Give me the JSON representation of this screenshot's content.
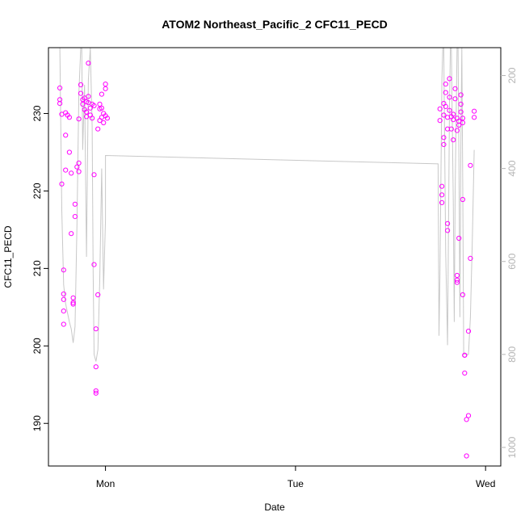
{
  "chart_data": {
    "type": "scatter",
    "title": "ATOM2 Northeast_Pacific_2 CFC11_PECD",
    "xlabel": "Date",
    "ylabel": "CFC11_PECD",
    "y_ticks": [
      190,
      200,
      210,
      220,
      230
    ],
    "ylim": [
      184.5,
      238.5
    ],
    "x_ticks": [
      {
        "label": "Mon",
        "day": 1.0
      },
      {
        "label": "Tue",
        "day": 2.0
      },
      {
        "label": "Wed",
        "day": 3.0
      }
    ],
    "xlim": [
      0.7,
      3.08
    ],
    "right_axis": {
      "ticks": [
        200,
        400,
        600,
        800,
        1000
      ],
      "ylim": [
        1040,
        140
      ],
      "inverted": true
    },
    "colors": {
      "points": "#ff00ff",
      "depth_line": "#c8c8c8",
      "right_axis": "#b4b4b4",
      "axis": "#000000"
    },
    "series": [
      {
        "role": "primary",
        "points": [
          {
            "day": 0.76,
            "value": 233.3
          },
          {
            "day": 0.76,
            "value": 231.8
          },
          {
            "day": 0.76,
            "value": 231.3
          },
          {
            "day": 0.77,
            "value": 229.9
          },
          {
            "day": 0.77,
            "value": 220.9
          },
          {
            "day": 0.78,
            "value": 209.8
          },
          {
            "day": 0.78,
            "value": 206.0
          },
          {
            "day": 0.78,
            "value": 206.7
          },
          {
            "day": 0.78,
            "value": 204.5
          },
          {
            "day": 0.78,
            "value": 202.8
          },
          {
            "day": 0.79,
            "value": 227.2
          },
          {
            "day": 0.79,
            "value": 222.7
          },
          {
            "day": 0.79,
            "value": 230.1
          },
          {
            "day": 0.8,
            "value": 229.8
          },
          {
            "day": 0.81,
            "value": 229.5
          },
          {
            "day": 0.81,
            "value": 225.0
          },
          {
            "day": 0.82,
            "value": 222.3
          },
          {
            "day": 0.82,
            "value": 214.5
          },
          {
            "day": 0.83,
            "value": 206.2
          },
          {
            "day": 0.83,
            "value": 205.6
          },
          {
            "day": 0.83,
            "value": 205.4
          },
          {
            "day": 0.84,
            "value": 216.7
          },
          {
            "day": 0.84,
            "value": 218.3
          },
          {
            "day": 0.85,
            "value": 223.1
          },
          {
            "day": 0.86,
            "value": 223.6
          },
          {
            "day": 0.86,
            "value": 222.5
          },
          {
            "day": 0.86,
            "value": 229.3
          },
          {
            "day": 0.87,
            "value": 233.7
          },
          {
            "day": 0.87,
            "value": 232.6
          },
          {
            "day": 0.88,
            "value": 231.8
          },
          {
            "day": 0.88,
            "value": 231.2
          },
          {
            "day": 0.89,
            "value": 230.5
          },
          {
            "day": 0.89,
            "value": 232.0
          },
          {
            "day": 0.9,
            "value": 231.5
          },
          {
            "day": 0.9,
            "value": 230.2
          },
          {
            "day": 0.9,
            "value": 229.6
          },
          {
            "day": 0.91,
            "value": 236.5
          },
          {
            "day": 0.91,
            "value": 232.2
          },
          {
            "day": 0.91,
            "value": 231.4
          },
          {
            "day": 0.92,
            "value": 230.7
          },
          {
            "day": 0.92,
            "value": 229.8
          },
          {
            "day": 0.93,
            "value": 229.4
          },
          {
            "day": 0.93,
            "value": 231.2
          },
          {
            "day": 0.94,
            "value": 231.0
          },
          {
            "day": 0.94,
            "value": 222.1
          },
          {
            "day": 0.94,
            "value": 210.5
          },
          {
            "day": 0.95,
            "value": 202.2
          },
          {
            "day": 0.95,
            "value": 197.3
          },
          {
            "day": 0.95,
            "value": 194.2
          },
          {
            "day": 0.95,
            "value": 193.9
          },
          {
            "day": 0.96,
            "value": 206.6
          },
          {
            "day": 0.96,
            "value": 228.0
          },
          {
            "day": 0.97,
            "value": 230.6
          },
          {
            "day": 0.97,
            "value": 231.2
          },
          {
            "day": 0.97,
            "value": 229.1
          },
          {
            "day": 0.98,
            "value": 232.5
          },
          {
            "day": 0.98,
            "value": 230.7
          },
          {
            "day": 0.98,
            "value": 229.5
          },
          {
            "day": 0.99,
            "value": 230.0
          },
          {
            "day": 0.99,
            "value": 228.8
          },
          {
            "day": 1.0,
            "value": 229.7
          },
          {
            "day": 1.0,
            "value": 233.8
          },
          {
            "day": 1.0,
            "value": 233.2
          },
          {
            "day": 1.01,
            "value": 229.4
          },
          {
            "day": 2.76,
            "value": 230.6
          },
          {
            "day": 2.76,
            "value": 229.1
          },
          {
            "day": 2.77,
            "value": 220.6
          },
          {
            "day": 2.77,
            "value": 219.5
          },
          {
            "day": 2.77,
            "value": 218.5
          },
          {
            "day": 2.78,
            "value": 226.0
          },
          {
            "day": 2.78,
            "value": 226.9
          },
          {
            "day": 2.78,
            "value": 229.8
          },
          {
            "day": 2.78,
            "value": 231.3
          },
          {
            "day": 2.79,
            "value": 233.8
          },
          {
            "day": 2.79,
            "value": 232.7
          },
          {
            "day": 2.79,
            "value": 230.9
          },
          {
            "day": 2.8,
            "value": 229.5
          },
          {
            "day": 2.8,
            "value": 228.0
          },
          {
            "day": 2.8,
            "value": 215.8
          },
          {
            "day": 2.8,
            "value": 214.9
          },
          {
            "day": 2.81,
            "value": 232.1
          },
          {
            "day": 2.81,
            "value": 234.5
          },
          {
            "day": 2.81,
            "value": 230.4
          },
          {
            "day": 2.82,
            "value": 229.6
          },
          {
            "day": 2.82,
            "value": 228.0
          },
          {
            "day": 2.83,
            "value": 226.6
          },
          {
            "day": 2.83,
            "value": 229.2
          },
          {
            "day": 2.83,
            "value": 229.9
          },
          {
            "day": 2.84,
            "value": 233.2
          },
          {
            "day": 2.84,
            "value": 231.9
          },
          {
            "day": 2.85,
            "value": 229.4
          },
          {
            "day": 2.85,
            "value": 227.8
          },
          {
            "day": 2.85,
            "value": 209.1
          },
          {
            "day": 2.85,
            "value": 208.5
          },
          {
            "day": 2.85,
            "value": 208.2
          },
          {
            "day": 2.86,
            "value": 213.9
          },
          {
            "day": 2.86,
            "value": 229.0
          },
          {
            "day": 2.86,
            "value": 228.5
          },
          {
            "day": 2.87,
            "value": 232.4
          },
          {
            "day": 2.87,
            "value": 231.2
          },
          {
            "day": 2.87,
            "value": 230.2
          },
          {
            "day": 2.88,
            "value": 229.4
          },
          {
            "day": 2.88,
            "value": 228.8
          },
          {
            "day": 2.88,
            "value": 218.9
          },
          {
            "day": 2.88,
            "value": 206.6
          },
          {
            "day": 2.89,
            "value": 198.8
          },
          {
            "day": 2.89,
            "value": 198.8
          },
          {
            "day": 2.89,
            "value": 196.5
          },
          {
            "day": 2.9,
            "value": 190.5
          },
          {
            "day": 2.9,
            "value": 185.8
          },
          {
            "day": 2.91,
            "value": 191.0
          },
          {
            "day": 2.91,
            "value": 201.9
          },
          {
            "day": 2.92,
            "value": 211.3
          },
          {
            "day": 2.92,
            "value": 223.3
          },
          {
            "day": 2.94,
            "value": 230.3
          },
          {
            "day": 2.94,
            "value": 229.5
          }
        ]
      },
      {
        "role": "secondary",
        "points": [
          {
            "day": 0.76,
            "value": 140
          },
          {
            "day": 0.77,
            "value": 490
          },
          {
            "day": 0.78,
            "value": 650
          },
          {
            "day": 0.79,
            "value": 690
          },
          {
            "day": 0.8,
            "value": 710
          },
          {
            "day": 0.81,
            "value": 730
          },
          {
            "day": 0.82,
            "value": 745
          },
          {
            "day": 0.83,
            "value": 775
          },
          {
            "day": 0.84,
            "value": 740
          },
          {
            "day": 0.85,
            "value": 520
          },
          {
            "day": 0.86,
            "value": 240
          },
          {
            "day": 0.87,
            "value": 140
          },
          {
            "day": 0.875,
            "value": 140
          },
          {
            "day": 0.88,
            "value": 360
          },
          {
            "day": 0.89,
            "value": 220
          },
          {
            "day": 0.9,
            "value": 590
          },
          {
            "day": 0.91,
            "value": 210
          },
          {
            "day": 0.92,
            "value": 140
          },
          {
            "day": 0.93,
            "value": 310
          },
          {
            "day": 0.935,
            "value": 620
          },
          {
            "day": 0.94,
            "value": 800
          },
          {
            "day": 0.95,
            "value": 815
          },
          {
            "day": 0.96,
            "value": 790
          },
          {
            "day": 0.97,
            "value": 640
          },
          {
            "day": 0.98,
            "value": 400
          },
          {
            "day": 0.99,
            "value": 660
          },
          {
            "day": 1.0,
            "value": 510
          },
          {
            "day": 1.0,
            "value": 372
          },
          {
            "day": 2.75,
            "value": 390
          },
          {
            "day": 2.755,
            "value": 760
          },
          {
            "day": 2.76,
            "value": 630
          },
          {
            "day": 2.77,
            "value": 210
          },
          {
            "day": 2.775,
            "value": 140
          },
          {
            "day": 2.78,
            "value": 140
          },
          {
            "day": 2.79,
            "value": 580
          },
          {
            "day": 2.8,
            "value": 780
          },
          {
            "day": 2.81,
            "value": 270
          },
          {
            "day": 2.815,
            "value": 140
          },
          {
            "day": 2.82,
            "value": 140
          },
          {
            "day": 2.83,
            "value": 470
          },
          {
            "day": 2.835,
            "value": 730
          },
          {
            "day": 2.84,
            "value": 450
          },
          {
            "day": 2.85,
            "value": 140
          },
          {
            "day": 2.855,
            "value": 140
          },
          {
            "day": 2.86,
            "value": 380
          },
          {
            "day": 2.865,
            "value": 720
          },
          {
            "day": 2.87,
            "value": 350
          },
          {
            "day": 2.875,
            "value": 140
          },
          {
            "day": 2.88,
            "value": 430
          },
          {
            "day": 2.885,
            "value": 800
          },
          {
            "day": 2.89,
            "value": 800
          },
          {
            "day": 2.9,
            "value": 800
          },
          {
            "day": 2.91,
            "value": 800
          },
          {
            "day": 2.92,
            "value": 720
          },
          {
            "day": 2.93,
            "value": 560
          },
          {
            "day": 2.94,
            "value": 360
          }
        ]
      }
    ]
  }
}
